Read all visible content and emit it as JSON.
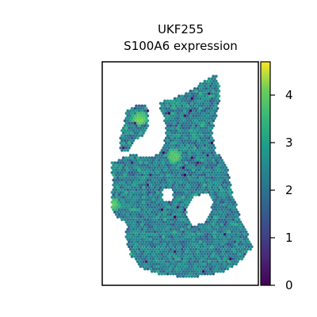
{
  "chart_data": {
    "type": "heatmap",
    "title": "UKF255",
    "subtitle": "S100A6 expression",
    "xlabel": "",
    "ylabel": "",
    "colorbar": {
      "colormap": "viridis",
      "range": [
        0,
        4.7
      ],
      "ticks": [
        0,
        1,
        2,
        3,
        4
      ],
      "tick_labels": [
        "0",
        "1",
        "2",
        "3",
        "4"
      ]
    },
    "grid": false,
    "legend": "colorbar-right",
    "description_values": {
      "mean_expression_estimate": 2.3,
      "hotspots": [
        4.3,
        4.1,
        4.0
      ]
    }
  },
  "colors": {
    "axis": "#000000",
    "background": "#ffffff"
  }
}
